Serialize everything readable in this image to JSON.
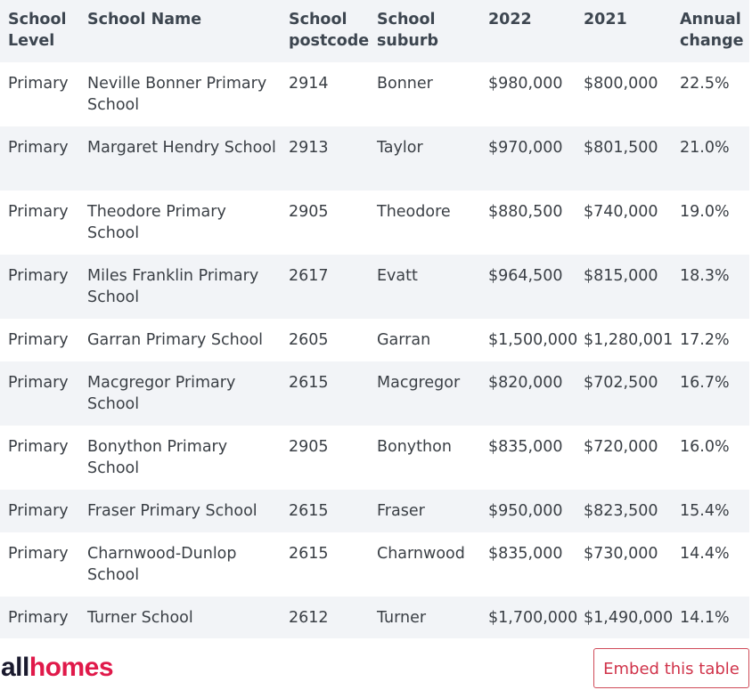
{
  "table": {
    "headers": {
      "level": "School Level",
      "name": "School Name",
      "postcode": "School postcode",
      "suburb": "School suburb",
      "y2022": "2022",
      "y2021": "2021",
      "change": "Annual change"
    },
    "rows": [
      {
        "level": "Primary",
        "name": "Neville Bonner Primary School",
        "postcode": "2914",
        "suburb": "Bonner",
        "y2022": "$980,000",
        "y2021": "$800,000",
        "change": "22.5%"
      },
      {
        "level": "Primary",
        "name": "Margaret Hendry School",
        "postcode": "2913",
        "suburb": "Taylor",
        "y2022": "$970,000",
        "y2021": "$801,500",
        "change": "21.0%"
      },
      {
        "level": "Primary",
        "name": "Theodore Primary School",
        "postcode": "2905",
        "suburb": "Theodore",
        "y2022": "$880,500",
        "y2021": "$740,000",
        "change": "19.0%"
      },
      {
        "level": "Primary",
        "name": "Miles Franklin Primary School",
        "postcode": "2617",
        "suburb": "Evatt",
        "y2022": "$964,500",
        "y2021": "$815,000",
        "change": "18.3%"
      },
      {
        "level": "Primary",
        "name": "Garran Primary School",
        "postcode": "2605",
        "suburb": "Garran",
        "y2022": "$1,500,000",
        "y2021": "$1,280,001",
        "change": "17.2%"
      },
      {
        "level": "Primary",
        "name": "Macgregor Primary School",
        "postcode": "2615",
        "suburb": "Macgregor",
        "y2022": "$820,000",
        "y2021": "$702,500",
        "change": "16.7%"
      },
      {
        "level": "Primary",
        "name": "Bonython Primary School",
        "postcode": "2905",
        "suburb": "Bonython",
        "y2022": "$835,000",
        "y2021": "$720,000",
        "change": "16.0%"
      },
      {
        "level": "Primary",
        "name": "Fraser Primary School",
        "postcode": "2615",
        "suburb": "Fraser",
        "y2022": "$950,000",
        "y2021": "$823,500",
        "change": "15.4%"
      },
      {
        "level": "Primary",
        "name": "Charnwood-Dunlop School",
        "postcode": "2615",
        "suburb": "Charnwood",
        "y2022": "$835,000",
        "y2021": "$730,000",
        "change": "14.4%"
      },
      {
        "level": "Primary",
        "name": "Turner School",
        "postcode": "2612",
        "suburb": "Turner",
        "y2022": "$1,700,000",
        "y2021": "$1,490,000",
        "change": "14.1%"
      }
    ]
  },
  "footer": {
    "logo_part1": "all",
    "logo_part2": "homes",
    "embed_label": "Embed this table"
  },
  "colors": {
    "brand": "#e0194a",
    "header_bg": "#f2f4f7",
    "button_border": "#d04b59"
  }
}
